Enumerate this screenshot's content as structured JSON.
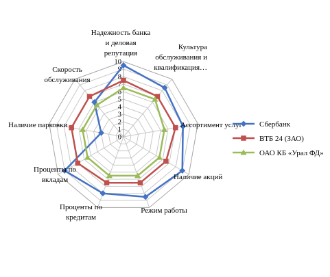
{
  "chart_data": {
    "type": "radar",
    "categories": [
      [
        "Надежность банка",
        "и деловая",
        "репутация"
      ],
      [
        "Культура",
        "обслуживания и",
        "квалификация…"
      ],
      [
        "Ассортимент  услуг"
      ],
      [
        "Наличие акций"
      ],
      [
        "Режим работы"
      ],
      [
        "Проценты по",
        "кредитам"
      ],
      [
        "Проценты по",
        "вкладам"
      ],
      [
        "Наличие парковки"
      ],
      [
        "Скорость",
        "обслуживания"
      ]
    ],
    "rlim": [
      0,
      10
    ],
    "ticks": [
      "0",
      "1",
      "2",
      "3",
      "4",
      "5",
      "6",
      "7",
      "8",
      "9",
      "10"
    ],
    "grid": true,
    "legend_position": "right",
    "series": [
      {
        "name": "Сбербанк",
        "color": "#4472C4",
        "marker": "diamond",
        "values": [
          9.5,
          8.5,
          8,
          9,
          8.5,
          8,
          9,
          3,
          6
        ]
      },
      {
        "name": "ВТБ 24 (ЗАО)",
        "color": "#C0504D",
        "marker": "square",
        "values": [
          7.5,
          7,
          7,
          6.5,
          6.5,
          6.5,
          7,
          7,
          7
        ]
      },
      {
        "name": "ОАО КБ «Урал ФД»",
        "color": "#9BBB59",
        "marker": "triangle",
        "values": [
          6.5,
          6.5,
          5.5,
          5.5,
          5.5,
          5.5,
          5.5,
          5.5,
          5.5
        ]
      }
    ]
  }
}
